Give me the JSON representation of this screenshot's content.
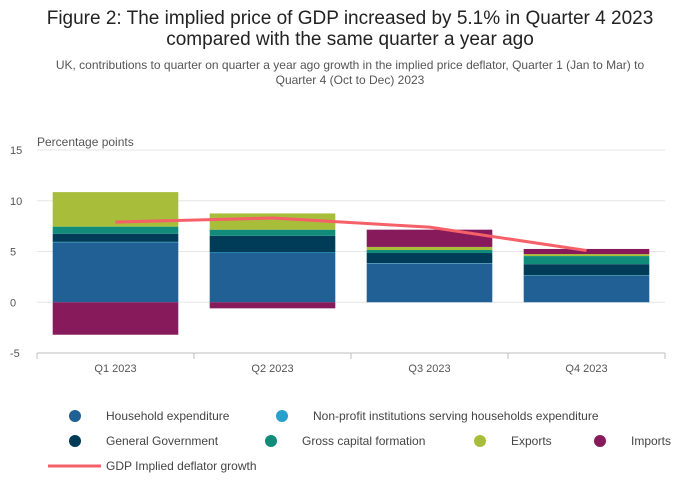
{
  "title_lines": [
    "Figure 2: The implied price of GDP increased by 5.1% in Quarter 4 2023",
    "compared with the same quarter a year ago"
  ],
  "subtitle_lines": [
    "UK, contributions to quarter on quarter a year ago growth in the implied price deflator, Quarter 1 (Jan to Mar) to",
    "Quarter 4 (Oct to Dec) 2023"
  ],
  "colors": {
    "household": "#206095",
    "npish": "#27A0CC",
    "government": "#003C57",
    "gcf": "#118C7B",
    "exports": "#A8BD3A",
    "imports": "#871A5B",
    "deflator": "#F66068",
    "grid": "#e6e6e6",
    "axis": "#bdbdbd"
  },
  "chart_data": {
    "type": "bar",
    "stacked": true,
    "title": "Figure 2: The implied price of GDP increased by 5.1% in Quarter 4 2023 compared with the same quarter a year ago",
    "subtitle": "UK, contributions to quarter on quarter a year ago growth in the implied price deflator, Quarter 1 (Jan to Mar) to Quarter 4 (Oct to Dec) 2023",
    "ylabel": "Percentage points",
    "xlabel": "",
    "ylim": [
      -5,
      15
    ],
    "yticks": [
      15,
      10,
      5,
      0,
      -5
    ],
    "grid": true,
    "legend_position": "bottom",
    "categories": [
      "Q1 2023",
      "Q2 2023",
      "Q3 2023",
      "Q4 2023"
    ],
    "series": [
      {
        "name": "Household expenditure",
        "key": "household",
        "type": "bar",
        "values": [
          5.9,
          4.9,
          3.8,
          2.6
        ]
      },
      {
        "name": "Non-profit institutions serving households expenditure",
        "key": "npish",
        "type": "bar",
        "values": [
          0.05,
          0.05,
          0.05,
          0.05
        ]
      },
      {
        "name": "General Government",
        "key": "government",
        "type": "bar",
        "values": [
          0.8,
          1.6,
          1.0,
          1.1
        ]
      },
      {
        "name": "Gross capital formation",
        "key": "gcf",
        "type": "bar",
        "values": [
          0.7,
          0.6,
          0.3,
          0.8
        ]
      },
      {
        "name": "Exports",
        "key": "exports",
        "type": "bar",
        "values": [
          3.4,
          1.6,
          0.3,
          0.2
        ]
      },
      {
        "name": "Imports",
        "key": "imports",
        "type": "bar",
        "values": [
          -3.2,
          -0.6,
          1.7,
          0.5
        ]
      },
      {
        "name": "GDP Implied deflator growth",
        "key": "deflator",
        "type": "line",
        "values": [
          7.9,
          8.3,
          7.4,
          5.1
        ]
      }
    ]
  }
}
